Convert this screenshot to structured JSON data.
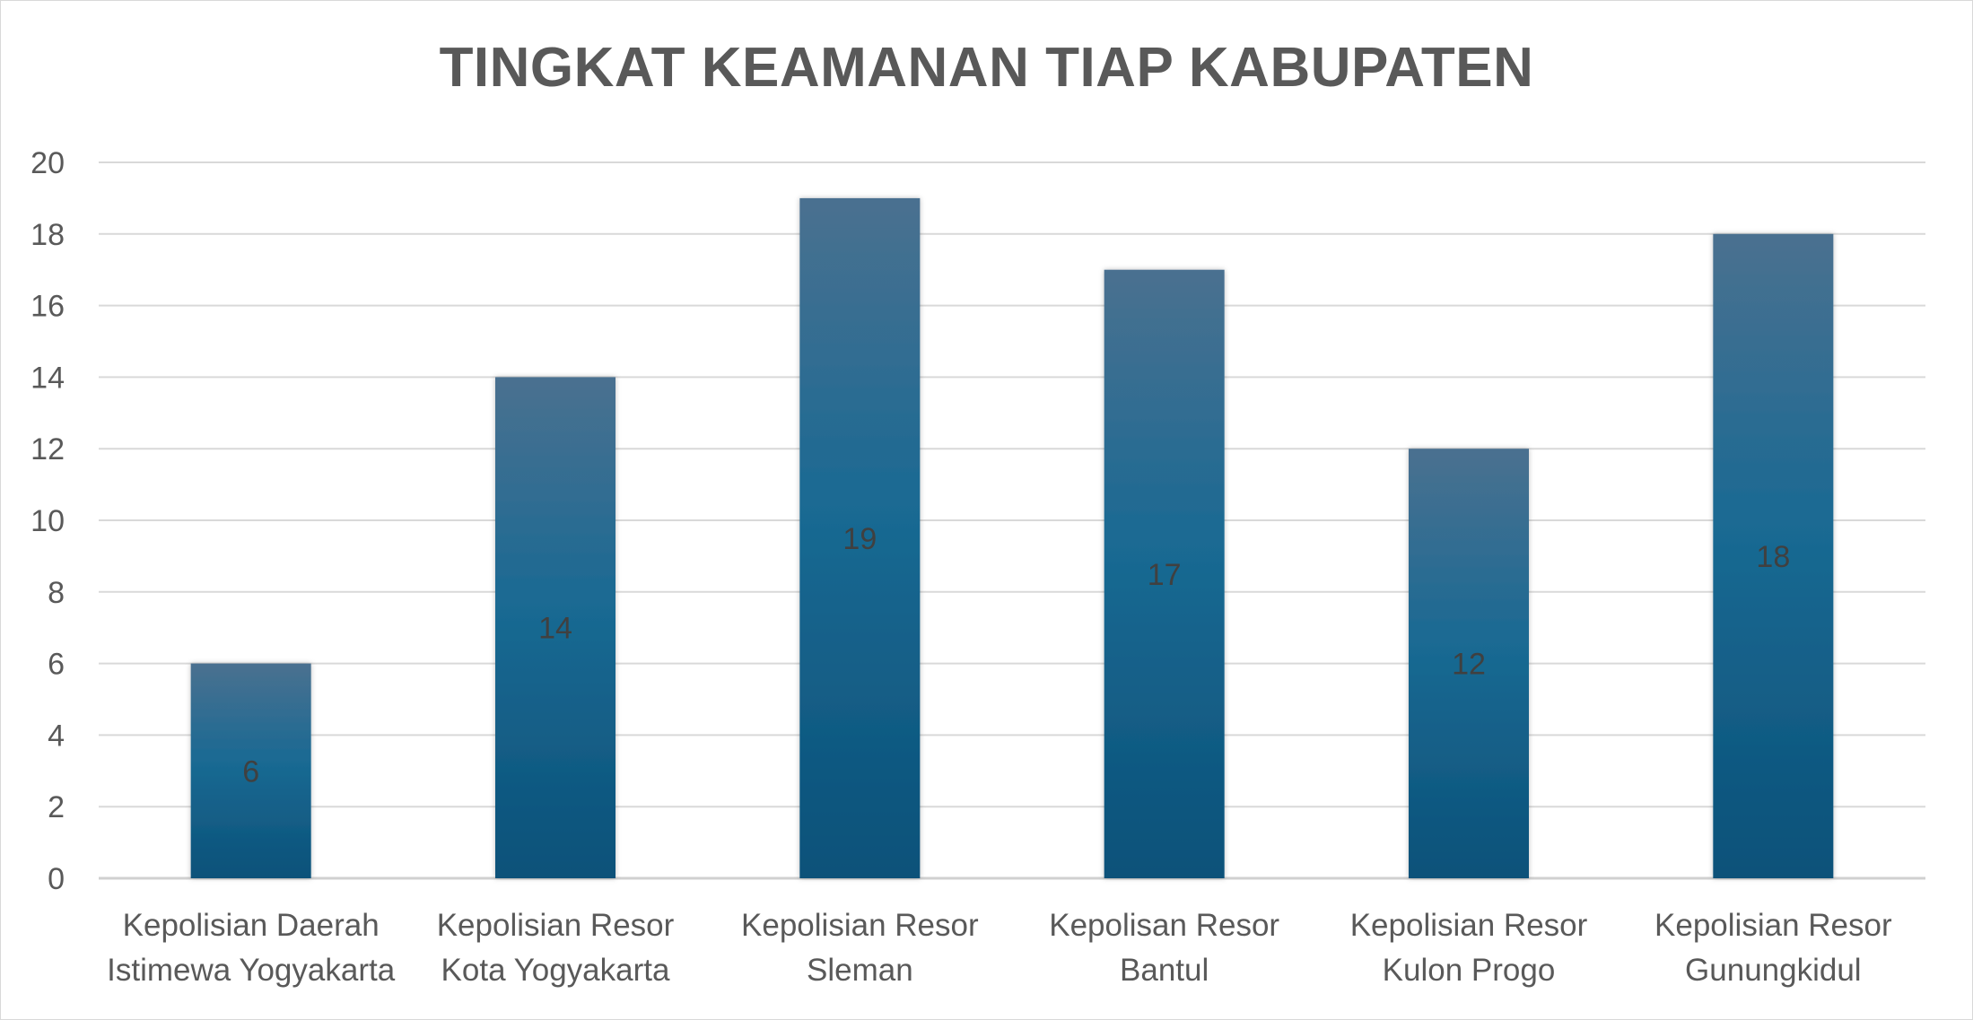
{
  "chart_data": {
    "type": "bar",
    "title": "TINGKAT KEAMANAN TIAP KABUPATEN",
    "categories": [
      [
        "Kepolisian Daerah",
        "Istimewa Yogyakarta"
      ],
      [
        "Kepolisian Resor",
        "Kota Yogyakarta"
      ],
      [
        "Kepolisian Resor",
        "Sleman"
      ],
      [
        "Kepolisan Resor",
        "Bantul"
      ],
      [
        "Kepolisian Resor",
        "Kulon Progo"
      ],
      [
        "Kepolisian Resor",
        "Gunungkidul"
      ]
    ],
    "values": [
      6,
      14,
      19,
      17,
      12,
      18
    ],
    "data_labels": [
      "6",
      "14",
      "19",
      "17",
      "12",
      "18"
    ],
    "ylim": [
      0,
      20
    ],
    "yticks": [
      0,
      2,
      4,
      6,
      8,
      10,
      12,
      14,
      16,
      18,
      20
    ],
    "grid": true,
    "legend": "none",
    "bar_color_top": "#4a7090",
    "bar_color_bottom": "#0b5179"
  }
}
